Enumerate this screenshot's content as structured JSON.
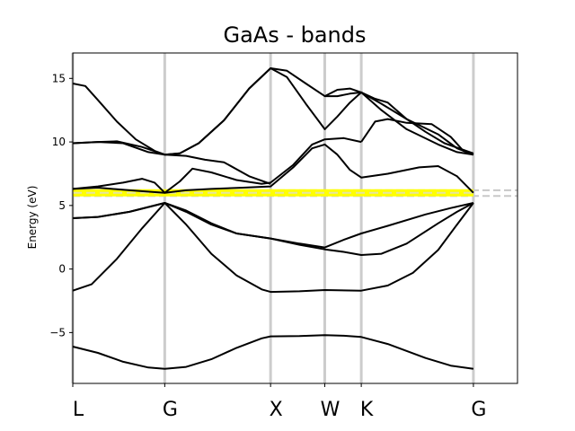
{
  "chart_data": {
    "type": "line",
    "title": "GaAs - bands",
    "ylabel": "Energy (eV)",
    "xlabel": "",
    "ylim": [
      -9,
      17
    ],
    "yticks": [
      -5,
      0,
      5,
      10,
      15
    ],
    "ytick_labels": [
      "−5",
      "0",
      "5",
      "10",
      "15"
    ],
    "xlim": [
      0,
      3.53
    ],
    "kpoints": [
      {
        "label": "L",
        "x": 0.0
      },
      {
        "label": "G",
        "x": 0.73
      },
      {
        "label": "X",
        "x": 1.57
      },
      {
        "label": "W",
        "x": 2.0
      },
      {
        "label": "K",
        "x": 2.29
      },
      {
        "label": "G",
        "x": 3.18
      }
    ],
    "fermi_level": 6.0,
    "reference_lines": [
      6.2,
      5.75
    ],
    "colors": {
      "bands": "#000000",
      "kpoint_lines": "#cccccc",
      "fermi": "#ffff00",
      "reference_dashes": "#c8c8c8"
    },
    "series": [
      {
        "values": [
          [
            0.0,
            -6.1
          ],
          [
            0.2,
            -6.6
          ],
          [
            0.4,
            -7.3
          ],
          [
            0.6,
            -7.75
          ],
          [
            0.73,
            -7.85
          ],
          [
            0.9,
            -7.7
          ],
          [
            1.1,
            -7.1
          ],
          [
            1.3,
            -6.2
          ],
          [
            1.5,
            -5.45
          ],
          [
            1.57,
            -5.3
          ],
          [
            1.8,
            -5.28
          ],
          [
            2.0,
            -5.2
          ],
          [
            2.15,
            -5.25
          ],
          [
            2.29,
            -5.35
          ],
          [
            2.5,
            -5.9
          ],
          [
            2.8,
            -7.0
          ],
          [
            3.0,
            -7.6
          ],
          [
            3.18,
            -7.85
          ]
        ]
      },
      {
        "values": [
          [
            0.0,
            -1.7
          ],
          [
            0.15,
            -1.2
          ],
          [
            0.35,
            0.8
          ],
          [
            0.55,
            3.2
          ],
          [
            0.73,
            5.2
          ],
          [
            0.9,
            3.5
          ],
          [
            1.1,
            1.2
          ],
          [
            1.3,
            -0.5
          ],
          [
            1.5,
            -1.6
          ],
          [
            1.57,
            -1.8
          ],
          [
            1.8,
            -1.75
          ],
          [
            2.0,
            -1.65
          ],
          [
            2.29,
            -1.7
          ],
          [
            2.5,
            -1.3
          ],
          [
            2.7,
            -0.3
          ],
          [
            2.9,
            1.5
          ],
          [
            3.05,
            3.5
          ],
          [
            3.18,
            5.2
          ]
        ]
      },
      {
        "values": [
          [
            0.0,
            4.0
          ],
          [
            0.2,
            4.1
          ],
          [
            0.45,
            4.5
          ],
          [
            0.73,
            5.2
          ],
          [
            0.9,
            4.5
          ],
          [
            1.1,
            3.5
          ],
          [
            1.3,
            2.8
          ],
          [
            1.57,
            2.4
          ],
          [
            1.8,
            1.9
          ],
          [
            2.0,
            1.55
          ],
          [
            2.15,
            1.35
          ],
          [
            2.29,
            1.1
          ],
          [
            2.45,
            1.2
          ],
          [
            2.65,
            2.0
          ],
          [
            2.9,
            3.6
          ],
          [
            3.05,
            4.5
          ],
          [
            3.18,
            5.2
          ]
        ]
      },
      {
        "values": [
          [
            0.0,
            4.0
          ],
          [
            0.2,
            4.1
          ],
          [
            0.45,
            4.5
          ],
          [
            0.73,
            5.2
          ],
          [
            0.9,
            4.6
          ],
          [
            1.1,
            3.6
          ],
          [
            1.3,
            2.8
          ],
          [
            1.57,
            2.4
          ],
          [
            1.8,
            2.0
          ],
          [
            2.0,
            1.7
          ],
          [
            2.15,
            2.3
          ],
          [
            2.29,
            2.8
          ],
          [
            2.5,
            3.4
          ],
          [
            2.8,
            4.3
          ],
          [
            3.0,
            4.8
          ],
          [
            3.18,
            5.2
          ]
        ]
      },
      {
        "values": [
          [
            0.0,
            6.3
          ],
          [
            0.2,
            6.5
          ],
          [
            0.4,
            6.8
          ],
          [
            0.55,
            7.1
          ],
          [
            0.65,
            6.8
          ],
          [
            0.73,
            6.0
          ],
          [
            0.85,
            6.9
          ],
          [
            0.95,
            7.9
          ],
          [
            1.1,
            7.6
          ],
          [
            1.3,
            7.0
          ],
          [
            1.5,
            6.7
          ],
          [
            1.57,
            6.8
          ],
          [
            1.75,
            8.2
          ],
          [
            1.9,
            9.8
          ],
          [
            2.0,
            10.2
          ],
          [
            2.15,
            10.3
          ],
          [
            2.29,
            10.0
          ]
        ]
      },
      {
        "values": [
          [
            0.0,
            6.3
          ],
          [
            0.2,
            6.4
          ],
          [
            0.45,
            6.2
          ],
          [
            0.73,
            6.0
          ],
          [
            0.9,
            6.2
          ],
          [
            1.1,
            6.3
          ],
          [
            1.35,
            6.4
          ],
          [
            1.57,
            6.5
          ],
          [
            1.75,
            8.0
          ],
          [
            1.9,
            9.5
          ],
          [
            2.0,
            9.8
          ],
          [
            2.1,
            9.0
          ],
          [
            2.2,
            7.8
          ],
          [
            2.29,
            7.2
          ],
          [
            2.5,
            7.5
          ],
          [
            2.75,
            8.0
          ],
          [
            2.9,
            8.1
          ],
          [
            3.05,
            7.3
          ],
          [
            3.18,
            6.0
          ]
        ]
      },
      {
        "values": [
          [
            0.0,
            9.9
          ],
          [
            0.2,
            10.0
          ],
          [
            0.35,
            10.05
          ],
          [
            0.55,
            9.6
          ],
          [
            0.73,
            9.0
          ],
          [
            0.9,
            8.9
          ],
          [
            1.05,
            8.6
          ],
          [
            1.2,
            8.4
          ],
          [
            1.4,
            7.3
          ],
          [
            1.57,
            6.7
          ]
        ]
      },
      {
        "values": [
          [
            0.0,
            14.6
          ],
          [
            0.1,
            14.4
          ],
          [
            0.2,
            13.3
          ],
          [
            0.35,
            11.6
          ],
          [
            0.5,
            10.2
          ],
          [
            0.65,
            9.3
          ],
          [
            0.73,
            9.0
          ],
          [
            0.85,
            9.1
          ],
          [
            1.0,
            9.9
          ],
          [
            1.2,
            11.7
          ],
          [
            1.4,
            14.2
          ],
          [
            1.57,
            15.8
          ],
          [
            1.7,
            15.6
          ],
          [
            1.85,
            14.6
          ],
          [
            2.0,
            13.6
          ],
          [
            2.1,
            13.6
          ],
          [
            2.2,
            13.8
          ],
          [
            2.29,
            13.9
          ],
          [
            2.45,
            13.0
          ],
          [
            2.65,
            11.8
          ],
          [
            2.9,
            10.6
          ],
          [
            3.05,
            9.5
          ],
          [
            3.18,
            9.0
          ]
        ]
      },
      {
        "values": [
          [
            0.0,
            9.9
          ],
          [
            0.2,
            10.0
          ],
          [
            0.4,
            9.9
          ],
          [
            0.6,
            9.2
          ],
          [
            0.73,
            9.0
          ],
          [
            0.85,
            9.1
          ],
          [
            1.0,
            9.9
          ],
          [
            1.2,
            11.7
          ],
          [
            1.4,
            14.2
          ],
          [
            1.57,
            15.8
          ],
          [
            1.7,
            15.1
          ],
          [
            1.85,
            13.0
          ],
          [
            2.0,
            11.0
          ],
          [
            2.1,
            12.0
          ],
          [
            2.2,
            13.1
          ],
          [
            2.29,
            13.9
          ],
          [
            2.45,
            12.5
          ],
          [
            2.65,
            11.0
          ],
          [
            2.9,
            9.8
          ],
          [
            3.05,
            9.2
          ],
          [
            3.18,
            9.0
          ]
        ]
      },
      {
        "values": [
          [
            2.29,
            10.0
          ],
          [
            2.4,
            11.6
          ],
          [
            2.5,
            11.8
          ],
          [
            2.65,
            11.5
          ],
          [
            2.85,
            11.4
          ],
          [
            3.0,
            10.4
          ],
          [
            3.1,
            9.3
          ],
          [
            3.18,
            9.0
          ]
        ]
      },
      {
        "values": [
          [
            2.0,
            13.6
          ],
          [
            2.1,
            14.1
          ],
          [
            2.2,
            14.2
          ],
          [
            2.29,
            13.9
          ],
          [
            2.4,
            13.4
          ],
          [
            2.5,
            13.1
          ],
          [
            2.65,
            11.8
          ],
          [
            2.8,
            10.8
          ],
          [
            2.95,
            9.9
          ],
          [
            3.18,
            9.1
          ]
        ]
      }
    ]
  }
}
